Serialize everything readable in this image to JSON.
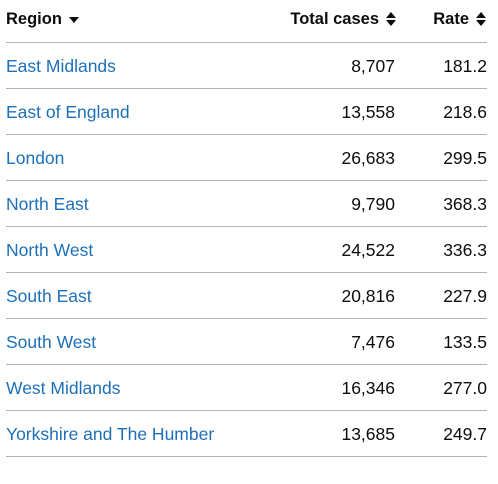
{
  "table": {
    "headers": {
      "region": "Region",
      "cases": "Total cases",
      "rate": "Rate"
    },
    "sort": {
      "region_icon": "sort-descending-icon",
      "cases_icon": "sort-both-icon",
      "rate_icon": "sort-both-icon"
    },
    "link_color": "#1d70b8",
    "rows": [
      {
        "region": "East Midlands",
        "cases": "8,707",
        "rate": "181.2"
      },
      {
        "region": "East of England",
        "cases": "13,558",
        "rate": "218.6"
      },
      {
        "region": "London",
        "cases": "26,683",
        "rate": "299.5"
      },
      {
        "region": "North East",
        "cases": "9,790",
        "rate": "368.3"
      },
      {
        "region": "North West",
        "cases": "24,522",
        "rate": "336.3"
      },
      {
        "region": "South East",
        "cases": "20,816",
        "rate": "227.9"
      },
      {
        "region": "South West",
        "cases": "7,476",
        "rate": "133.5"
      },
      {
        "region": "West Midlands",
        "cases": "16,346",
        "rate": "277.0"
      },
      {
        "region": "Yorkshire and The Humber",
        "cases": "13,685",
        "rate": "249.7"
      }
    ]
  }
}
